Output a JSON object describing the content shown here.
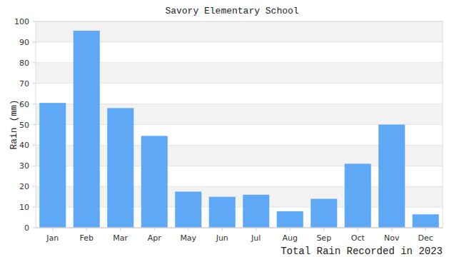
{
  "chart_data": {
    "type": "bar",
    "title": "Savory Elementary School",
    "x_label": "Total Rain Recorded in 2023",
    "y_label": "Rain (mm)",
    "categories": [
      "Jan",
      "Feb",
      "Mar",
      "Apr",
      "May",
      "Jun",
      "Jul",
      "Aug",
      "Sep",
      "Oct",
      "Nov",
      "Dec"
    ],
    "values": [
      60.5,
      95.5,
      58,
      44.5,
      17.5,
      15,
      16,
      8,
      14,
      31,
      50,
      6.5
    ],
    "color": "#5fa8f5",
    "ylim": [
      0,
      100
    ],
    "yticks": [
      0,
      10,
      20,
      30,
      40,
      50,
      60,
      70,
      80,
      90,
      100
    ],
    "grid": true
  }
}
